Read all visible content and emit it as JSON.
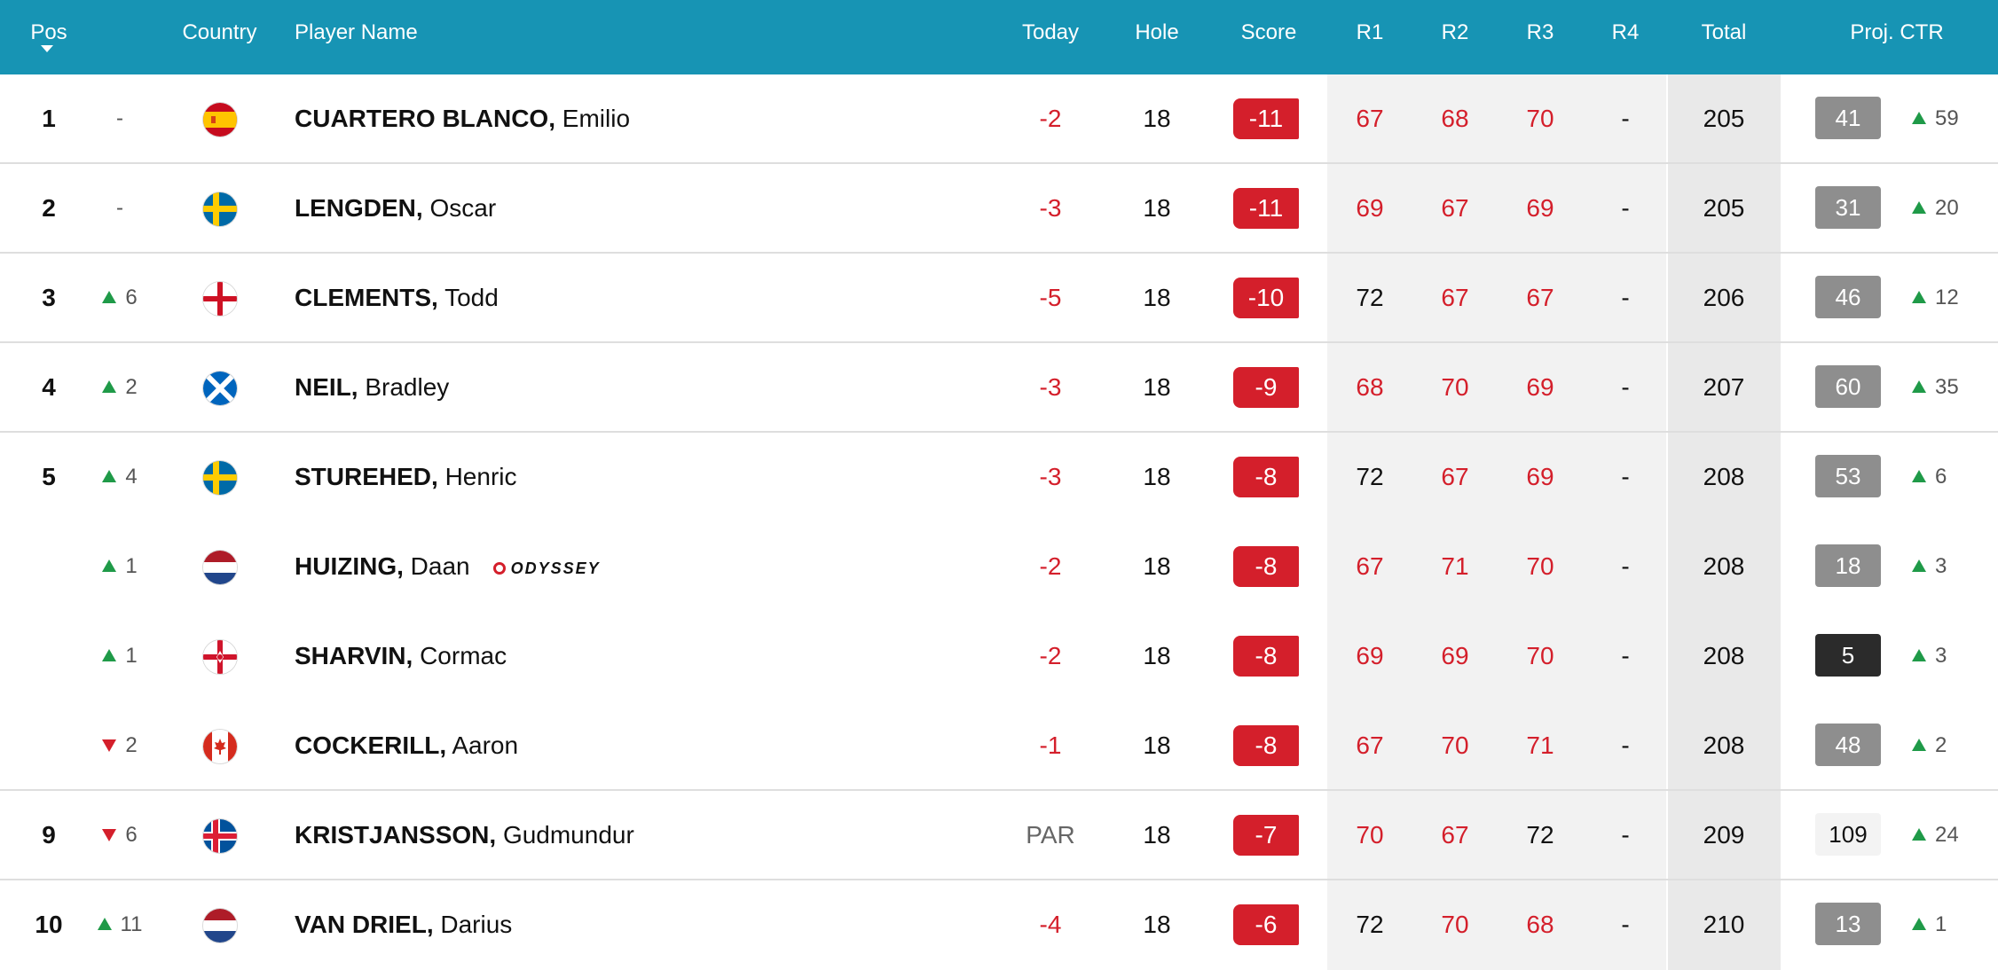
{
  "header": {
    "pos": "Pos",
    "country": "Country",
    "player": "Player Name",
    "today": "Today",
    "hole": "Hole",
    "score": "Score",
    "r1": "R1",
    "r2": "R2",
    "r3": "R3",
    "r4": "R4",
    "total": "Total",
    "ctr": "Proj. CTR"
  },
  "colors": {
    "header_bg": "#1794b4",
    "score_red": "#d41f2b",
    "up_green": "#1f9a48",
    "down_red": "#d41f2b"
  },
  "rows": [
    {
      "pos": "1",
      "move": "-",
      "move_dir": "none",
      "flag": "spain-flag-icon",
      "last": "CUARTERO BLANCO,",
      "first": "Emilio",
      "today": "-2",
      "today_red": true,
      "hole": "18",
      "score": "-11",
      "r1": "67",
      "r1_red": true,
      "r2": "68",
      "r2_red": true,
      "r3": "70",
      "r3_red": true,
      "r4": "-",
      "total": "205",
      "ctr": "41",
      "ctr_style": "dim",
      "ctr_move": "59",
      "sep": true
    },
    {
      "pos": "2",
      "move": "-",
      "move_dir": "none",
      "flag": "sweden-flag-icon",
      "last": "LENGDEN,",
      "first": "Oscar",
      "today": "-3",
      "today_red": true,
      "hole": "18",
      "score": "-11",
      "r1": "69",
      "r1_red": true,
      "r2": "67",
      "r2_red": true,
      "r3": "69",
      "r3_red": true,
      "r4": "-",
      "total": "205",
      "ctr": "31",
      "ctr_style": "dim",
      "ctr_move": "20",
      "sep": true
    },
    {
      "pos": "3",
      "move": "6",
      "move_dir": "up",
      "flag": "england-flag-icon",
      "last": "CLEMENTS,",
      "first": "Todd",
      "today": "-5",
      "today_red": true,
      "hole": "18",
      "score": "-10",
      "r1": "72",
      "r1_red": false,
      "r2": "67",
      "r2_red": true,
      "r3": "67",
      "r3_red": true,
      "r4": "-",
      "total": "206",
      "ctr": "46",
      "ctr_style": "dim",
      "ctr_move": "12",
      "sep": true
    },
    {
      "pos": "4",
      "move": "2",
      "move_dir": "up",
      "flag": "scotland-flag-icon",
      "last": "NEIL,",
      "first": "Bradley",
      "today": "-3",
      "today_red": true,
      "hole": "18",
      "score": "-9",
      "r1": "68",
      "r1_red": true,
      "r2": "70",
      "r2_red": true,
      "r3": "69",
      "r3_red": true,
      "r4": "-",
      "total": "207",
      "ctr": "60",
      "ctr_style": "dim",
      "ctr_move": "35",
      "sep": true
    },
    {
      "pos": "5",
      "move": "4",
      "move_dir": "up",
      "flag": "sweden-flag-icon",
      "last": "STUREHED,",
      "first": "Henric",
      "today": "-3",
      "today_red": true,
      "hole": "18",
      "score": "-8",
      "r1": "72",
      "r1_red": false,
      "r2": "67",
      "r2_red": true,
      "r3": "69",
      "r3_red": true,
      "r4": "-",
      "total": "208",
      "ctr": "53",
      "ctr_style": "dim",
      "ctr_move": "6",
      "sep": false
    },
    {
      "pos": "",
      "move": "1",
      "move_dir": "up",
      "flag": "netherlands-flag-icon",
      "last": "HUIZING,",
      "first": "Daan",
      "sponsor": "ODYSSEY",
      "today": "-2",
      "today_red": true,
      "hole": "18",
      "score": "-8",
      "r1": "67",
      "r1_red": true,
      "r2": "71",
      "r2_red": true,
      "r3": "70",
      "r3_red": true,
      "r4": "-",
      "total": "208",
      "ctr": "18",
      "ctr_style": "dim",
      "ctr_move": "3",
      "sep": false
    },
    {
      "pos": "",
      "move": "1",
      "move_dir": "up",
      "flag": "northern-ireland-flag-icon",
      "last": "SHARVIN,",
      "first": "Cormac",
      "today": "-2",
      "today_red": true,
      "hole": "18",
      "score": "-8",
      "r1": "69",
      "r1_red": true,
      "r2": "69",
      "r2_red": true,
      "r3": "70",
      "r3_red": true,
      "r4": "-",
      "total": "208",
      "ctr": "5",
      "ctr_style": "dark",
      "ctr_move": "3",
      "sep": false
    },
    {
      "pos": "",
      "move": "2",
      "move_dir": "down",
      "flag": "canada-flag-icon",
      "last": "COCKERILL,",
      "first": "Aaron",
      "today": "-1",
      "today_red": true,
      "hole": "18",
      "score": "-8",
      "r1": "67",
      "r1_red": true,
      "r2": "70",
      "r2_red": true,
      "r3": "71",
      "r3_red": true,
      "r4": "-",
      "total": "208",
      "ctr": "48",
      "ctr_style": "dim",
      "ctr_move": "2",
      "sep": true
    },
    {
      "pos": "9",
      "move": "6",
      "move_dir": "down",
      "flag": "iceland-flag-icon",
      "last": "KRISTJANSSON,",
      "first": "Gudmundur",
      "today": "PAR",
      "today_red": false,
      "hole": "18",
      "score": "-7",
      "r1": "70",
      "r1_red": true,
      "r2": "67",
      "r2_red": true,
      "r3": "72",
      "r3_red": false,
      "r4": "-",
      "total": "209",
      "ctr": "109",
      "ctr_style": "light",
      "ctr_move": "24",
      "sep": true
    },
    {
      "pos": "10",
      "move": "11",
      "move_dir": "up",
      "flag": "netherlands-flag-icon",
      "last": "VAN DRIEL,",
      "first": "Darius",
      "today": "-4",
      "today_red": true,
      "hole": "18",
      "score": "-6",
      "r1": "72",
      "r1_red": false,
      "r2": "70",
      "r2_red": true,
      "r3": "68",
      "r3_red": true,
      "r4": "-",
      "total": "210",
      "ctr": "13",
      "ctr_style": "dim",
      "ctr_move": "1",
      "sep": false
    }
  ]
}
